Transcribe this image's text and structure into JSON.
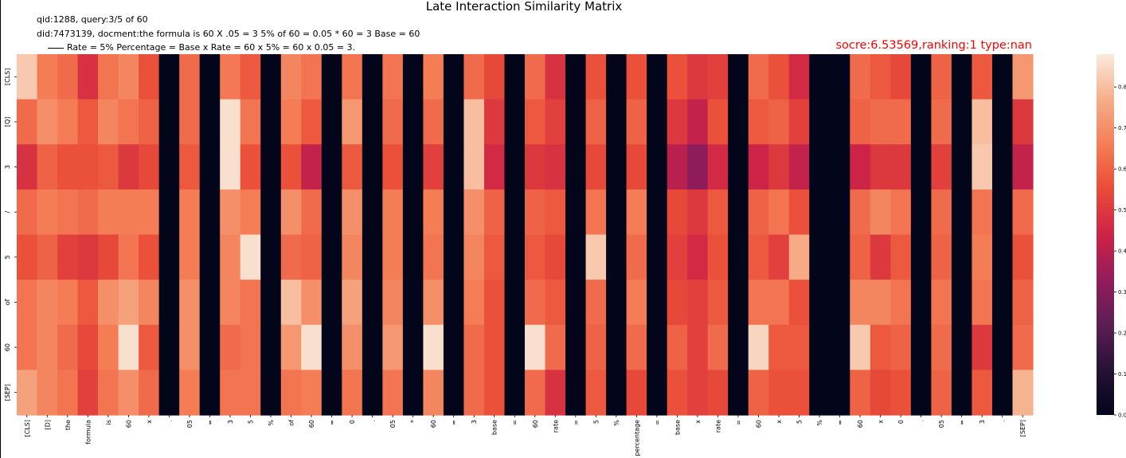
{
  "chart_data": {
    "type": "heatmap",
    "title": "Late Interaction Similarity Matrix",
    "annotations": {
      "line1": "qid:1288, query:3/5 of 60",
      "line2": "did:7473139, docment:the formula is 60 X .05 = 3 5% of 60 = 0.05 * 60 = 3 Base = 60",
      "line3": "Rate = 5% Percentage = Base x Rate = 60 x 5% = 60 x 0.05 = 3.",
      "score": "socre:6.53569,ranking:1 type:nan"
    },
    "y_labels": [
      "[CLS]",
      "[Q]",
      "3",
      "/",
      "5",
      "of",
      "60",
      "[SEP]"
    ],
    "x_labels": [
      "[CLS]",
      "[D]",
      "the",
      "formula",
      "is",
      "60",
      "x",
      ".",
      "05",
      "=",
      "3",
      "5",
      "%",
      "of",
      "60",
      "=",
      "0",
      ".",
      "05",
      "*",
      "60",
      "=",
      "3",
      "base",
      "=",
      "60",
      "rate",
      "=",
      "5",
      "%",
      "percentage",
      "=",
      "base",
      "x",
      "rate",
      "=",
      "60",
      "x",
      "5",
      "%",
      "=",
      "60",
      "x",
      "0",
      ".",
      "05",
      "=",
      "3",
      ".",
      "[SEP]"
    ],
    "values": [
      [
        0.82,
        0.66,
        0.62,
        0.48,
        0.64,
        0.68,
        0.56,
        0.0,
        0.62,
        0.0,
        0.65,
        0.58,
        0.0,
        0.68,
        0.64,
        0.0,
        0.64,
        0.0,
        0.64,
        0.0,
        0.66,
        0.0,
        0.62,
        0.54,
        0.0,
        0.62,
        0.48,
        0.0,
        0.56,
        0.0,
        0.56,
        0.0,
        0.56,
        0.5,
        0.52,
        0.0,
        0.62,
        0.56,
        0.46,
        0.0,
        0.0,
        0.62,
        0.58,
        0.54,
        0.0,
        0.6,
        0.0,
        0.58,
        0.0,
        0.72
      ],
      [
        0.62,
        0.7,
        0.66,
        0.58,
        0.68,
        0.64,
        0.6,
        0.0,
        0.62,
        0.0,
        0.86,
        0.64,
        0.0,
        0.66,
        0.58,
        0.0,
        0.72,
        0.0,
        0.62,
        0.0,
        0.62,
        0.0,
        0.8,
        0.5,
        0.0,
        0.58,
        0.52,
        0.0,
        0.6,
        0.0,
        0.6,
        0.0,
        0.5,
        0.42,
        0.56,
        0.0,
        0.58,
        0.6,
        0.52,
        0.0,
        0.0,
        0.6,
        0.62,
        0.62,
        0.0,
        0.62,
        0.0,
        0.8,
        0.0,
        0.5
      ],
      [
        0.48,
        0.6,
        0.56,
        0.56,
        0.58,
        0.5,
        0.54,
        0.0,
        0.58,
        0.0,
        0.86,
        0.56,
        0.0,
        0.56,
        0.42,
        0.0,
        0.58,
        0.0,
        0.56,
        0.0,
        0.52,
        0.0,
        0.8,
        0.46,
        0.0,
        0.5,
        0.48,
        0.0,
        0.54,
        0.0,
        0.54,
        0.0,
        0.4,
        0.32,
        0.46,
        0.0,
        0.44,
        0.5,
        0.42,
        0.0,
        0.0,
        0.44,
        0.5,
        0.5,
        0.0,
        0.52,
        0.0,
        0.82,
        0.0,
        0.42
      ],
      [
        0.62,
        0.66,
        0.64,
        0.62,
        0.66,
        0.66,
        0.66,
        0.0,
        0.66,
        0.0,
        0.7,
        0.66,
        0.0,
        0.7,
        0.62,
        0.0,
        0.7,
        0.0,
        0.66,
        0.0,
        0.66,
        0.0,
        0.7,
        0.6,
        0.0,
        0.6,
        0.58,
        0.0,
        0.64,
        0.0,
        0.66,
        0.0,
        0.54,
        0.5,
        0.58,
        0.0,
        0.6,
        0.64,
        0.56,
        0.0,
        0.0,
        0.62,
        0.68,
        0.64,
        0.0,
        0.62,
        0.0,
        0.64,
        0.0,
        0.62
      ],
      [
        0.56,
        0.6,
        0.52,
        0.5,
        0.54,
        0.64,
        0.56,
        0.0,
        0.66,
        0.0,
        0.68,
        0.86,
        0.0,
        0.62,
        0.6,
        0.0,
        0.68,
        0.0,
        0.66,
        0.0,
        0.64,
        0.0,
        0.68,
        0.58,
        0.0,
        0.58,
        0.54,
        0.0,
        0.82,
        0.0,
        0.62,
        0.0,
        0.52,
        0.46,
        0.56,
        0.0,
        0.58,
        0.52,
        0.76,
        0.0,
        0.0,
        0.6,
        0.5,
        0.58,
        0.0,
        0.6,
        0.0,
        0.66,
        0.0,
        0.56
      ],
      [
        0.64,
        0.68,
        0.66,
        0.58,
        0.7,
        0.74,
        0.68,
        0.0,
        0.7,
        0.0,
        0.68,
        0.64,
        0.0,
        0.8,
        0.7,
        0.0,
        0.74,
        0.0,
        0.68,
        0.0,
        0.7,
        0.0,
        0.66,
        0.56,
        0.0,
        0.62,
        0.58,
        0.0,
        0.62,
        0.0,
        0.66,
        0.0,
        0.54,
        0.52,
        0.58,
        0.0,
        0.64,
        0.64,
        0.56,
        0.0,
        0.0,
        0.68,
        0.68,
        0.64,
        0.0,
        0.64,
        0.0,
        0.64,
        0.0,
        0.6
      ],
      [
        0.64,
        0.68,
        0.62,
        0.54,
        0.66,
        0.86,
        0.58,
        0.0,
        0.7,
        0.0,
        0.62,
        0.64,
        0.0,
        0.72,
        0.86,
        0.0,
        0.7,
        0.0,
        0.72,
        0.0,
        0.86,
        0.0,
        0.62,
        0.56,
        0.0,
        0.86,
        0.62,
        0.0,
        0.6,
        0.0,
        0.62,
        0.0,
        0.6,
        0.52,
        0.62,
        0.0,
        0.84,
        0.58,
        0.58,
        0.0,
        0.0,
        0.82,
        0.58,
        0.6,
        0.0,
        0.62,
        0.0,
        0.5,
        0.0,
        0.62
      ],
      [
        0.74,
        0.68,
        0.64,
        0.52,
        0.64,
        0.7,
        0.62,
        0.0,
        0.66,
        0.0,
        0.64,
        0.64,
        0.0,
        0.64,
        0.66,
        0.0,
        0.64,
        0.0,
        0.64,
        0.0,
        0.68,
        0.0,
        0.62,
        0.56,
        0.0,
        0.62,
        0.48,
        0.0,
        0.58,
        0.0,
        0.54,
        0.0,
        0.56,
        0.52,
        0.54,
        0.0,
        0.6,
        0.56,
        0.56,
        0.0,
        0.0,
        0.6,
        0.54,
        0.56,
        0.0,
        0.6,
        0.0,
        0.58,
        0.0,
        0.78
      ]
    ],
    "colorbar": {
      "ticks": [
        "0.0",
        "0.1",
        "0.2",
        "0.3",
        "0.4",
        "0.5",
        "0.6",
        "0.7",
        "0.8"
      ],
      "range": [
        0,
        0.88
      ]
    }
  }
}
